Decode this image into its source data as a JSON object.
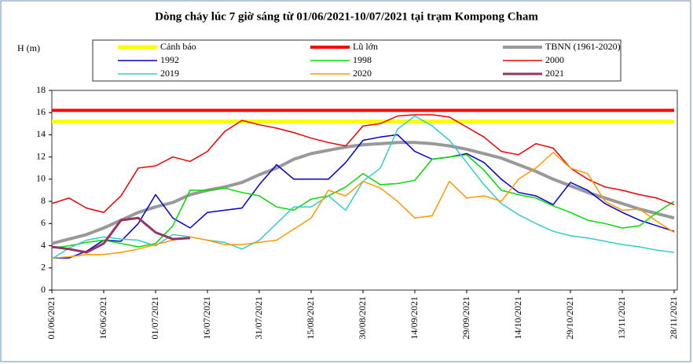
{
  "chart_data": {
    "type": "line",
    "title": "Dòng chảy lúc 7 giờ sáng từ 01/06/2021-10/07/2021 tại trạm Kompong Cham",
    "y_label": "H (m)",
    "categories": [
      "01/06/2021",
      null,
      null,
      "16/06/2021",
      null,
      null,
      "01/07/2021",
      null,
      null,
      "16/07/2021",
      null,
      null,
      "31/07/2021",
      null,
      null,
      "15/08/2021",
      null,
      null,
      "30/08/2021",
      null,
      null,
      "14/09/2021",
      null,
      null,
      "29/09/2021",
      null,
      null,
      "14/10/2021",
      null,
      null,
      "29/10/2021",
      null,
      null,
      "13/11/2021",
      null,
      null,
      "28/11/2021"
    ],
    "ylim": [
      0,
      18
    ],
    "yticks": [
      0,
      2,
      4,
      6,
      8,
      10,
      12,
      14,
      16,
      18
    ],
    "series": [
      {
        "name": "Cảnh báo",
        "color": "#ffff00",
        "width": 5,
        "values": [
          15.2,
          15.2,
          15.2,
          15.2,
          15.2,
          15.2,
          15.2,
          15.2,
          15.2,
          15.2,
          15.2,
          15.2,
          15.2,
          15.2,
          15.2,
          15.2,
          15.2,
          15.2,
          15.2,
          15.2,
          15.2,
          15.2,
          15.2,
          15.2,
          15.2,
          15.2,
          15.2,
          15.2,
          15.2,
          15.2,
          15.2,
          15.2,
          15.2,
          15.2,
          15.2,
          15.2,
          15.2
        ]
      },
      {
        "name": "Lũ lớn",
        "color": "#ff0000",
        "width": 4,
        "values": [
          16.2,
          16.2,
          16.2,
          16.2,
          16.2,
          16.2,
          16.2,
          16.2,
          16.2,
          16.2,
          16.2,
          16.2,
          16.2,
          16.2,
          16.2,
          16.2,
          16.2,
          16.2,
          16.2,
          16.2,
          16.2,
          16.2,
          16.2,
          16.2,
          16.2,
          16.2,
          16.2,
          16.2,
          16.2,
          16.2,
          16.2,
          16.2,
          16.2,
          16.2,
          16.2,
          16.2,
          16.2
        ]
      },
      {
        "name": "TBNN (1961-2020)",
        "color": "#999999",
        "width": 4,
        "values": [
          4.2,
          4.6,
          5.0,
          5.6,
          6.3,
          7.0,
          7.5,
          7.9,
          8.6,
          9.0,
          9.3,
          9.7,
          10.4,
          11.0,
          11.8,
          12.3,
          12.6,
          12.9,
          13.1,
          13.2,
          13.3,
          13.3,
          13.2,
          13.0,
          12.7,
          12.3,
          11.9,
          11.3,
          10.7,
          10.0,
          9.4,
          8.8,
          8.3,
          7.8,
          7.3,
          6.9,
          6.5
        ]
      },
      {
        "name": "1992",
        "color": "#0000cc",
        "width": 1.5,
        "values": [
          2.9,
          2.9,
          3.5,
          4.5,
          4.4,
          6.0,
          8.6,
          6.5,
          5.6,
          7.0,
          7.2,
          7.4,
          9.5,
          11.3,
          10.0,
          10.0,
          10.0,
          11.5,
          13.5,
          13.8,
          14.0,
          12.5,
          11.8,
          12.0,
          12.3,
          11.5,
          10.0,
          8.8,
          8.5,
          7.7,
          9.7,
          9.0,
          7.8,
          7.0,
          6.3,
          5.8,
          5.3
        ]
      },
      {
        "name": "1998",
        "color": "#00dd00",
        "width": 1.5,
        "values": [
          3.8,
          4.0,
          4.3,
          4.5,
          4.2,
          3.9,
          4.2,
          5.8,
          9.0,
          9.0,
          9.2,
          8.8,
          8.5,
          7.5,
          7.2,
          8.2,
          8.5,
          9.3,
          10.5,
          9.5,
          9.6,
          9.9,
          11.8,
          12.0,
          12.2,
          10.8,
          9.0,
          8.6,
          8.3,
          7.6,
          7.0,
          6.3,
          6.0,
          5.6,
          5.8,
          7.0,
          8.0
        ]
      },
      {
        "name": "2000",
        "color": "#ee0000",
        "width": 1.5,
        "values": [
          7.8,
          8.3,
          7.4,
          7.0,
          8.5,
          11.0,
          11.2,
          12.0,
          11.6,
          12.5,
          14.3,
          15.3,
          14.9,
          14.6,
          14.2,
          13.7,
          13.3,
          13.0,
          14.8,
          15.0,
          15.7,
          15.8,
          15.8,
          15.6,
          14.7,
          13.8,
          12.5,
          12.2,
          13.2,
          12.8,
          11.0,
          10.0,
          9.3,
          9.0,
          8.6,
          8.3,
          7.7
        ]
      },
      {
        "name": "2019",
        "color": "#33cccc",
        "width": 1.5,
        "values": [
          2.8,
          3.8,
          4.5,
          4.8,
          4.6,
          4.5,
          4.0,
          5.0,
          4.8,
          4.5,
          4.3,
          3.7,
          4.5,
          6.0,
          7.5,
          7.5,
          8.5,
          7.2,
          9.8,
          11.0,
          14.5,
          15.7,
          14.8,
          13.5,
          11.5,
          9.5,
          7.8,
          6.8,
          6.0,
          5.3,
          4.9,
          4.7,
          4.4,
          4.1,
          3.9,
          3.6,
          3.4
        ]
      },
      {
        "name": "2020",
        "color": "#ff9900",
        "width": 1.5,
        "values": [
          2.9,
          3.0,
          3.2,
          3.2,
          3.4,
          3.7,
          4.1,
          4.5,
          4.8,
          4.5,
          4.1,
          4.1,
          4.3,
          4.5,
          5.5,
          6.5,
          9.0,
          8.5,
          9.8,
          9.2,
          8.0,
          6.5,
          6.7,
          9.8,
          8.3,
          8.5,
          8.0,
          10.0,
          11.0,
          12.4,
          11.0,
          10.5,
          8.0,
          7.2,
          7.3,
          6.2,
          5.2
        ]
      },
      {
        "name": "2021",
        "color": "#993366",
        "width": 3,
        "values": [
          3.9,
          3.7,
          3.4,
          4.2,
          6.3,
          6.5,
          5.2,
          4.6,
          4.7,
          null,
          null,
          null,
          null,
          null,
          null,
          null,
          null,
          null,
          null,
          null,
          null,
          null,
          null,
          null,
          null,
          null,
          null,
          null,
          null,
          null,
          null,
          null,
          null,
          null,
          null,
          null,
          null
        ]
      }
    ]
  }
}
